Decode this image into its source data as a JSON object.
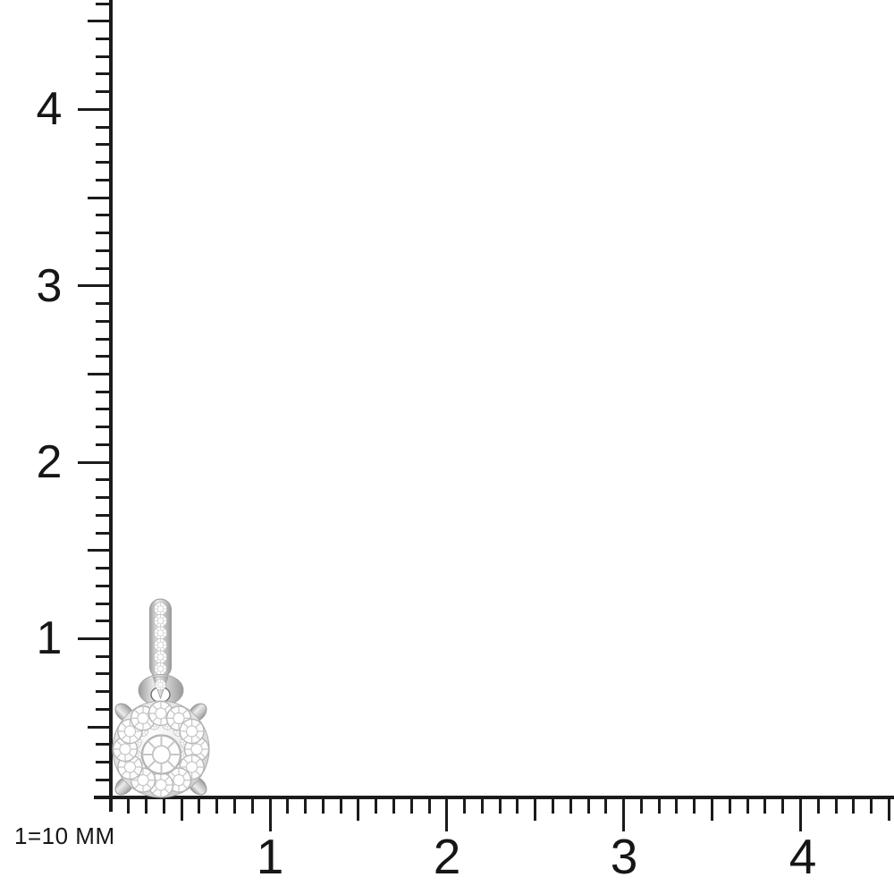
{
  "canvas": {
    "background": "#ffffff",
    "ink_color": "#1b1b1b"
  },
  "scale_note": {
    "text": "1=10 MM"
  },
  "rulers": {
    "vertical": {
      "side": "left",
      "labels": [
        "4",
        "3",
        "2",
        "1"
      ]
    },
    "horizontal": {
      "side": "bottom",
      "labels": [
        "1",
        "2",
        "3",
        "4"
      ]
    },
    "minor_ticks_per_label": 10,
    "label_unit_mm": 10
  },
  "product": {
    "subject": "white-metal round diamond cluster pendant with diamond-set bail and jump ring",
    "approx_width_mm": 5.5,
    "approx_height_mm": 11,
    "colors": {
      "metal_light": "#ececec",
      "metal_mid": "#c6c6c6",
      "metal_dark": "#9a9a9a",
      "diamond_fill": "#fdfdfd",
      "diamond_facet": "#c6c6c6",
      "hole_shadow": "#6e6e6e"
    }
  }
}
